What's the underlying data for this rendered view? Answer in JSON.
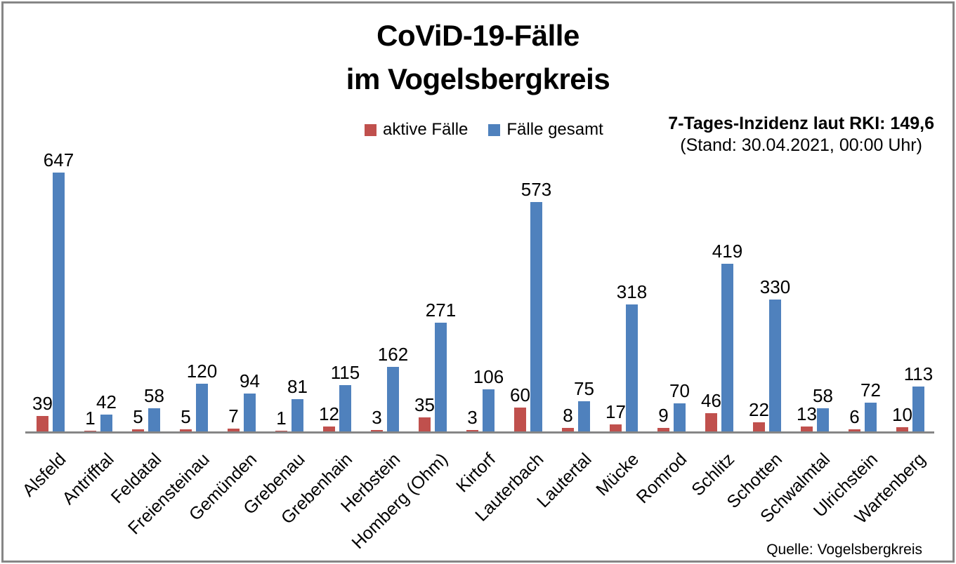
{
  "title": {
    "line1": "CoViD-19-Fälle",
    "line2": "im Vogelsbergkreis"
  },
  "legend": [
    {
      "label": "aktive Fälle",
      "color": "#C0504D"
    },
    {
      "label": "Fälle gesamt",
      "color": "#4F81BD"
    }
  ],
  "annotation": {
    "incidence": "7-Tages-Inzidenz laut RKI: 149,6",
    "stand": "(Stand: 30.04.2021, 00:00 Uhr)"
  },
  "source": "Quelle: Vogelsbergkreis",
  "chart_data": {
    "type": "bar",
    "title": "CoViD-19-Fälle im Vogelsbergkreis",
    "categories": [
      "Alsfeld",
      "Antrifftal",
      "Feldatal",
      "Freiensteinau",
      "Gemünden",
      "Grebenau",
      "Grebenhain",
      "Herbstein",
      "Homberg (Ohm)",
      "Kirtorf",
      "Lauterbach",
      "Lautertal",
      "Mücke",
      "Romrod",
      "Schlitz",
      "Schotten",
      "Schwalmtal",
      "Ulrichstein",
      "Wartenberg"
    ],
    "series": [
      {
        "name": "aktive Fälle",
        "color": "#C0504D",
        "values": [
          39,
          1,
          5,
          5,
          7,
          1,
          12,
          3,
          35,
          3,
          60,
          8,
          17,
          9,
          46,
          22,
          13,
          6,
          10
        ]
      },
      {
        "name": "Fälle gesamt",
        "color": "#4F81BD",
        "values": [
          647,
          42,
          58,
          120,
          94,
          81,
          115,
          162,
          271,
          106,
          573,
          75,
          318,
          70,
          419,
          330,
          58,
          72,
          113
        ]
      }
    ],
    "ylim": [
      0,
      700
    ],
    "grid": false,
    "data_labels": true,
    "legend_position": "top-center",
    "x_label_rotation": -45,
    "axis_line_color": "#868686",
    "xlabel": "",
    "ylabel": ""
  }
}
